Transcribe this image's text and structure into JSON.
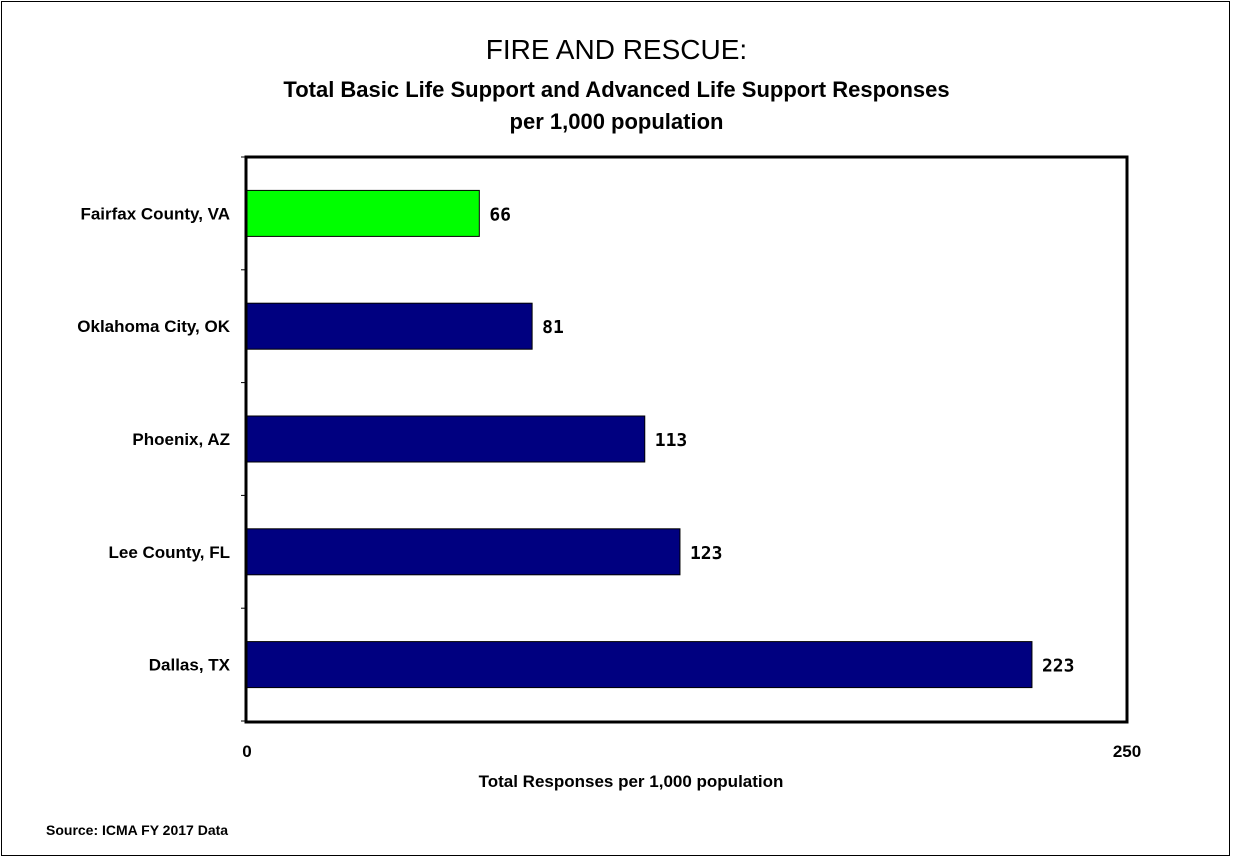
{
  "chart_data": {
    "type": "bar",
    "orientation": "horizontal",
    "title": "FIRE AND RESCUE:",
    "subtitle_line1": "Total Basic Life Support and Advanced Life Support Responses",
    "subtitle_line2": "per 1,000 population",
    "categories": [
      "Fairfax County, VA",
      "Oklahoma City, OK",
      "Phoenix, AZ",
      "Lee County, FL",
      "Dallas, TX"
    ],
    "values": [
      66,
      81,
      113,
      123,
      223
    ],
    "value_labels": [
      "66",
      "81",
      "113",
      "123",
      "223"
    ],
    "bar_colors": [
      "#00ff00",
      "#000080",
      "#000080",
      "#000080",
      "#000080"
    ],
    "xlabel": "Total Responses per 1,000 population",
    "xlim": [
      0,
      250
    ],
    "x_tick_labels": [
      "0",
      "250"
    ],
    "grid": false,
    "legend": "none"
  },
  "source": "Source: ICMA FY 2017 Data"
}
